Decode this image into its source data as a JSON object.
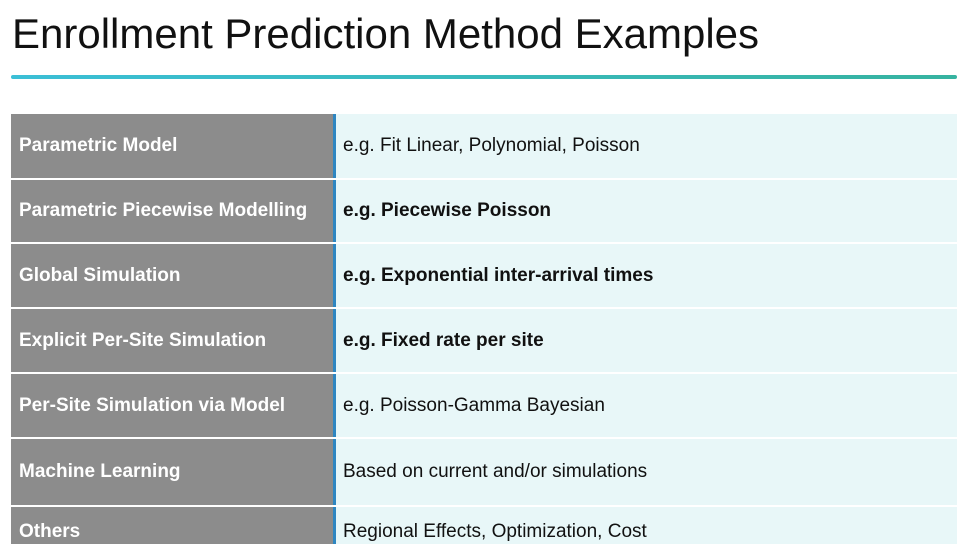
{
  "slide": {
    "title": "Enrollment Prediction Method Examples",
    "colors": {
      "label_bg": "#8c8c8c",
      "value_bg": "#e8f7f8",
      "divider": "#2e86c1",
      "rule_start": "#3bbfd6",
      "rule_end": "#36b3a0"
    }
  },
  "table": {
    "rows": [
      {
        "method": "Parametric Model",
        "example": "e.g. Fit Linear, Polynomial, Poisson",
        "emphasis": false
      },
      {
        "method": "Parametric Piecewise Modelling",
        "example": "e.g. Piecewise Poisson",
        "emphasis": true
      },
      {
        "method": "Global Simulation",
        "example": "e.g. Exponential inter-arrival times",
        "emphasis": true
      },
      {
        "method": "Explicit Per-Site Simulation",
        "example": "e.g. Fixed rate per site",
        "emphasis": true
      },
      {
        "method": "Per-Site Simulation via Model",
        "example": "e.g. Poisson-Gamma Bayesian",
        "emphasis": false
      },
      {
        "method": "Machine Learning",
        "example": "Based on current and/or simulations",
        "emphasis": false
      },
      {
        "method": "Others",
        "example": "Regional Effects, Optimization, Cost",
        "emphasis": false
      }
    ]
  }
}
